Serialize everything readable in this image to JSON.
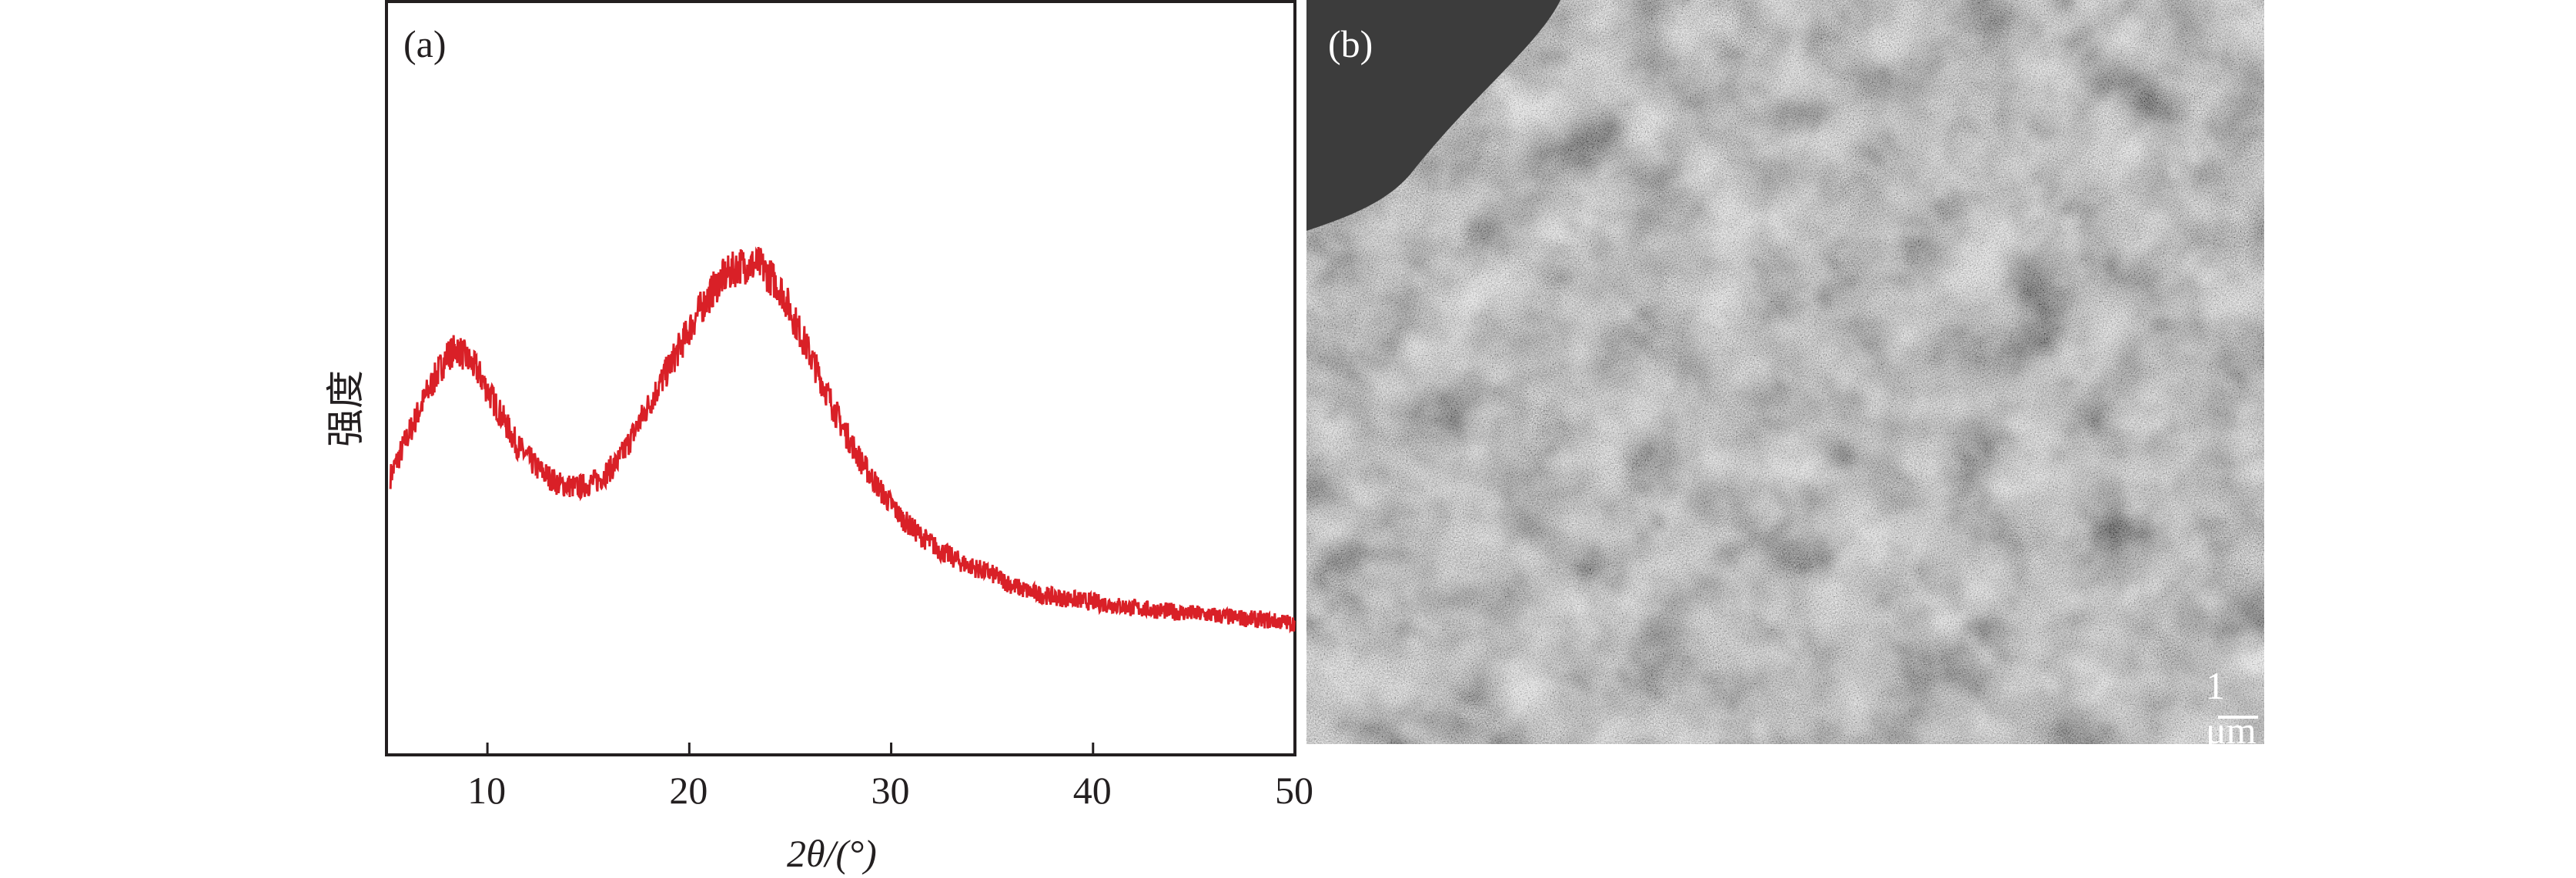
{
  "chart_data": {
    "type": "line",
    "panel_label": "(a)",
    "xlabel": "2θ/(°)",
    "ylabel": "强度",
    "xlim": [
      5,
      50
    ],
    "x_ticks": [
      10,
      20,
      30,
      40,
      50
    ],
    "y_ticks": [],
    "ylim": [
      0,
      100
    ],
    "y_unit_note": "",
    "grid": false,
    "legend": "none",
    "line_color": "#d92027",
    "series": [
      {
        "x": [
          5.2,
          6,
          7,
          8,
          8.5,
          9.5,
          10.5,
          11.5,
          12.5,
          13.5,
          14.5,
          15.5,
          16.5,
          17.5,
          18.5,
          19.5,
          20.5,
          21.5,
          22.5,
          23.5,
          24.5,
          25.5,
          26.5,
          27.5,
          28.5,
          29.5,
          30.5,
          31.5,
          32.5,
          33.5,
          35,
          36,
          37,
          38,
          40,
          42,
          44,
          46,
          48,
          50
        ],
        "y": [
          37,
          42,
          48,
          53,
          54,
          51,
          46,
          41,
          38,
          36,
          35.5,
          36.5,
          39,
          44,
          49,
          54,
          59,
          63,
          65,
          65,
          62,
          56,
          50,
          44,
          39,
          35,
          31.5,
          29,
          27,
          25.5,
          24,
          22.5,
          21.5,
          21,
          20.3,
          19.5,
          19,
          18.5,
          18,
          17.5
        ]
      }
    ]
  },
  "sem_image": {
    "panel_label": "(b)",
    "scale_bar_label": "1 μm"
  }
}
